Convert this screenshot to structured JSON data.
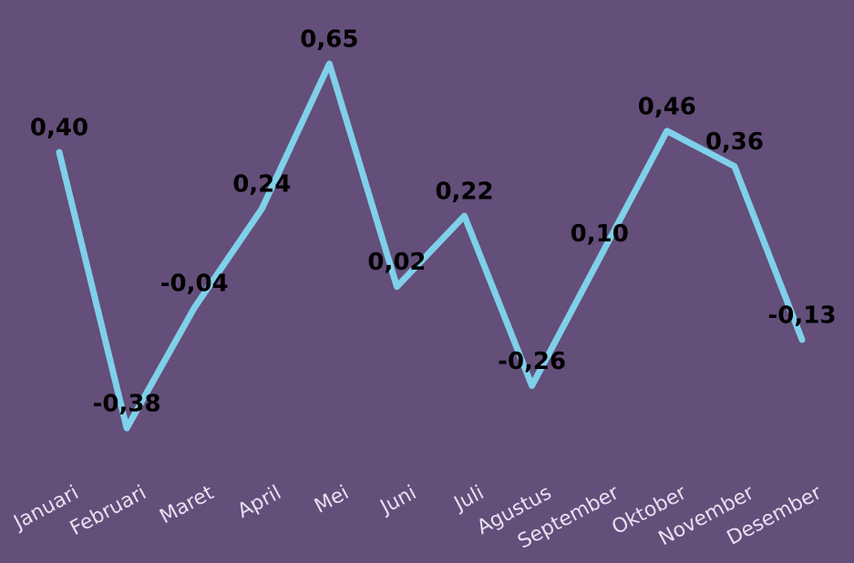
{
  "chart_data": {
    "type": "line",
    "categories": [
      "Januari",
      "Februari",
      "Maret",
      "April",
      "Mei",
      "Juni",
      "Juli",
      "Agustus",
      "September",
      "Oktober",
      "November",
      "Desember"
    ],
    "values": [
      0.4,
      -0.38,
      -0.04,
      0.24,
      0.65,
      0.02,
      0.22,
      -0.26,
      0.1,
      0.46,
      0.36,
      -0.13
    ],
    "value_labels": [
      "0,40",
      "-0,38",
      "-0,04",
      "0,24",
      "0,65",
      "0,02",
      "0,22",
      "-0,26",
      "0,10",
      "0,46",
      "0,36",
      "-0,13"
    ],
    "color": "#7fd0ea"
  }
}
